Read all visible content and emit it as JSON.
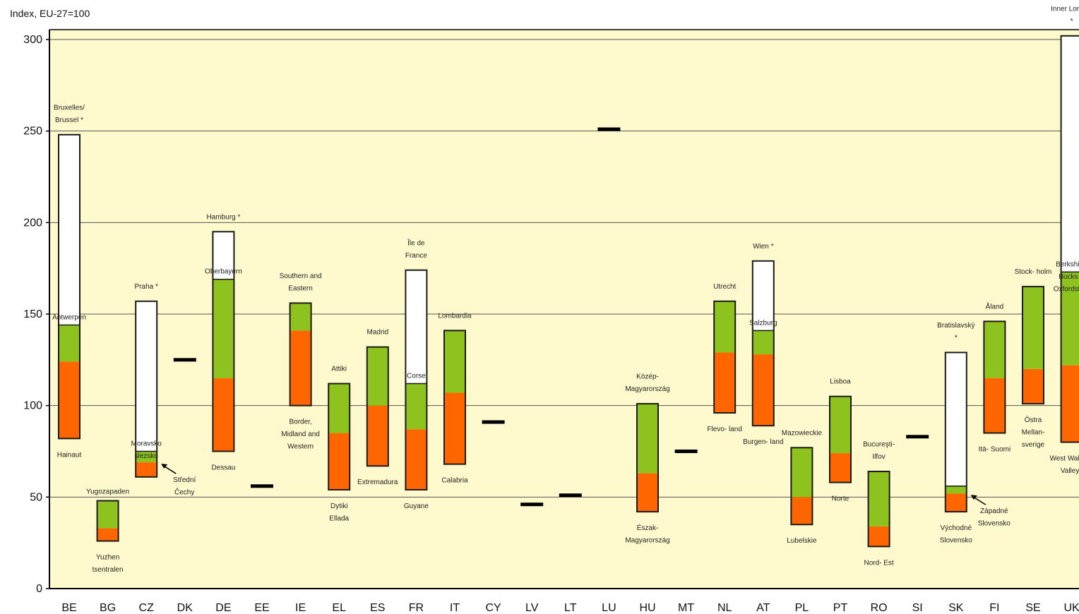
{
  "colors": {
    "plot_bg": "#fffacd",
    "green": "#8ec21f",
    "orange": "#ff6600",
    "outline": "#1a1a1a",
    "grid": "#555555"
  },
  "chart_data": {
    "type": "bar",
    "ylabel": "Index, EU-27=100",
    "ylim": [
      0,
      300
    ],
    "yticks": [
      0,
      50,
      100,
      150,
      200,
      250,
      300
    ],
    "grid": true,
    "categories": [
      "BE",
      "BG",
      "CZ",
      "DK",
      "DE",
      "EE",
      "IE",
      "EL",
      "ES",
      "FR",
      "IT",
      "CY",
      "LV",
      "LT",
      "LU",
      "HU",
      "MT",
      "NL",
      "AT",
      "PL",
      "PT",
      "RO",
      "SI",
      "SK",
      "FI",
      "SE",
      "UK"
    ],
    "countries": [
      {
        "code": "BE",
        "min": 82,
        "q_low": 124,
        "q_high": 144,
        "max": 248,
        "labels": {
          "max": "Bruxelles/ Brussel *",
          "top": "Antwerpen",
          "min": "Hainaut"
        }
      },
      {
        "code": "BG",
        "min": 26,
        "q_low": 33,
        "q_high": 48,
        "max": 48,
        "labels": {
          "top": "Yugozapaden",
          "min": "Yuzhen tsentralen"
        }
      },
      {
        "code": "CZ",
        "min": 61,
        "q_low": 69,
        "q_high": 75,
        "max": 157,
        "labels": {
          "max": "Praha *",
          "top": "Moravsko slezsko",
          "note": "Střední Čechy"
        }
      },
      {
        "code": "DK",
        "value": 125
      },
      {
        "code": "DE",
        "min": 75,
        "q_low": 115,
        "q_high": 169,
        "max": 195,
        "labels": {
          "max": "Hamburg *",
          "top": "Oberbayern",
          "min": "Dessau"
        }
      },
      {
        "code": "EE",
        "value": 56
      },
      {
        "code": "IE",
        "min": 100,
        "q_low": 141,
        "q_high": 156,
        "max": 156,
        "labels": {
          "max": "Southern and Eastern",
          "min": "Border, Midland and Western"
        }
      },
      {
        "code": "EL",
        "min": 54,
        "q_low": 85,
        "q_high": 112,
        "max": 112,
        "labels": {
          "max": "Attiki",
          "min": "Dytiki Ellada"
        }
      },
      {
        "code": "ES",
        "min": 67,
        "q_low": 100,
        "q_high": 132,
        "max": 132,
        "labels": {
          "max": "Madrid",
          "min": "Extremadura"
        }
      },
      {
        "code": "FR",
        "min": 54,
        "q_low": 87,
        "q_high": 112,
        "max": 174,
        "labels": {
          "max": "Île de France",
          "top": "Corse",
          "min": "Guyane"
        }
      },
      {
        "code": "IT",
        "min": 68,
        "q_low": 107,
        "q_high": 141,
        "max": 141,
        "labels": {
          "max": "Lombardia",
          "min": "Calabria"
        }
      },
      {
        "code": "CY",
        "value": 91
      },
      {
        "code": "LV",
        "value": 46
      },
      {
        "code": "LT",
        "value": 51
      },
      {
        "code": "LU",
        "value": 251
      },
      {
        "code": "HU",
        "min": 42,
        "q_low": 63,
        "q_high": 101,
        "max": 101,
        "labels": {
          "max": "Közép- Magyarország",
          "min": "Észak- Magyarország"
        }
      },
      {
        "code": "MT",
        "value": 75
      },
      {
        "code": "NL",
        "min": 96,
        "q_low": 129,
        "q_high": 157,
        "max": 157,
        "labels": {
          "max": "Utrecht",
          "min": "Flevo- land"
        }
      },
      {
        "code": "AT",
        "min": 89,
        "q_low": 128,
        "q_high": 141,
        "max": 179,
        "labels": {
          "max": "Wien *",
          "top": "Salzburg",
          "min": "Burgen- land"
        }
      },
      {
        "code": "PL",
        "min": 35,
        "q_low": 50,
        "q_high": 77,
        "max": 77,
        "labels": {
          "max": "Mazowieckie",
          "min": "Lubelskie"
        }
      },
      {
        "code": "PT",
        "min": 58,
        "q_low": 74,
        "q_high": 105,
        "max": 105,
        "labels": {
          "max": "Lisboa",
          "min": "Norte"
        }
      },
      {
        "code": "RO",
        "min": 23,
        "q_low": 34,
        "q_high": 64,
        "max": 64,
        "labels": {
          "max": "Bucureşti- Ilfov",
          "min": "Nord- Est"
        }
      },
      {
        "code": "SI",
        "value": 83
      },
      {
        "code": "SK",
        "min": 42,
        "q_low": 52,
        "q_high": 56,
        "max": 129,
        "labels": {
          "max": "Bratislavský *",
          "min": "Východné Slovensko",
          "note": "Západné Slovensko"
        }
      },
      {
        "code": "FI",
        "min": 85,
        "q_low": 115,
        "q_high": 146,
        "max": 146,
        "labels": {
          "max": "Åland",
          "min": "Itä- Suomi"
        }
      },
      {
        "code": "SE",
        "min": 101,
        "q_low": 120,
        "q_high": 165,
        "max": 165,
        "labels": {
          "max": "Stock- holm",
          "min": "Östra Mellan- sverige"
        }
      },
      {
        "code": "UK",
        "min": 80,
        "q_low": 122,
        "q_high": 173,
        "max": 302,
        "labels": {
          "max": "Inner London *",
          "top": "Berkshire, Bucks & Oxfordshire",
          "min": "West Wales & Valleys"
        }
      }
    ]
  }
}
